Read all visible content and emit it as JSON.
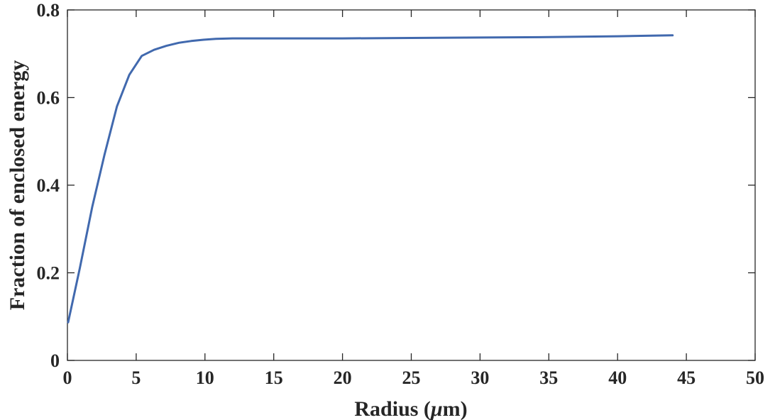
{
  "chart_data": {
    "type": "line",
    "title": "",
    "xlabel_prefix": "Radius (",
    "xlabel_symbol": "μ",
    "xlabel_suffix": "m)",
    "ylabel": "Fraction of enclosed energy",
    "xlim": [
      0,
      50
    ],
    "ylim": [
      0,
      0.8
    ],
    "xticks": [
      0,
      5,
      10,
      15,
      20,
      25,
      30,
      35,
      40,
      45,
      50
    ],
    "yticks": [
      0,
      0.2,
      0.4,
      0.6,
      0.8
    ],
    "xtick_labels": [
      "0",
      "5",
      "10",
      "15",
      "20",
      "25",
      "30",
      "35",
      "40",
      "45",
      "50"
    ],
    "ytick_labels": [
      "0",
      "0.2",
      "0.4",
      "0.6",
      "0.8"
    ],
    "grid": false,
    "series": [
      {
        "color": "#4169AE",
        "x": [
          0.05,
          0.9,
          1.8,
          2.7,
          3.6,
          4.5,
          5.4,
          6.3,
          7.2,
          8.1,
          9.0,
          9.9,
          10.8,
          12.0,
          15.0,
          20.0,
          25.0,
          30.0,
          35.0,
          40.0,
          44.0
        ],
        "y": [
          0.087,
          0.21,
          0.35,
          0.47,
          0.58,
          0.652,
          0.695,
          0.709,
          0.718,
          0.725,
          0.729,
          0.732,
          0.734,
          0.735,
          0.735,
          0.735,
          0.736,
          0.737,
          0.738,
          0.74,
          0.742
        ]
      }
    ]
  }
}
